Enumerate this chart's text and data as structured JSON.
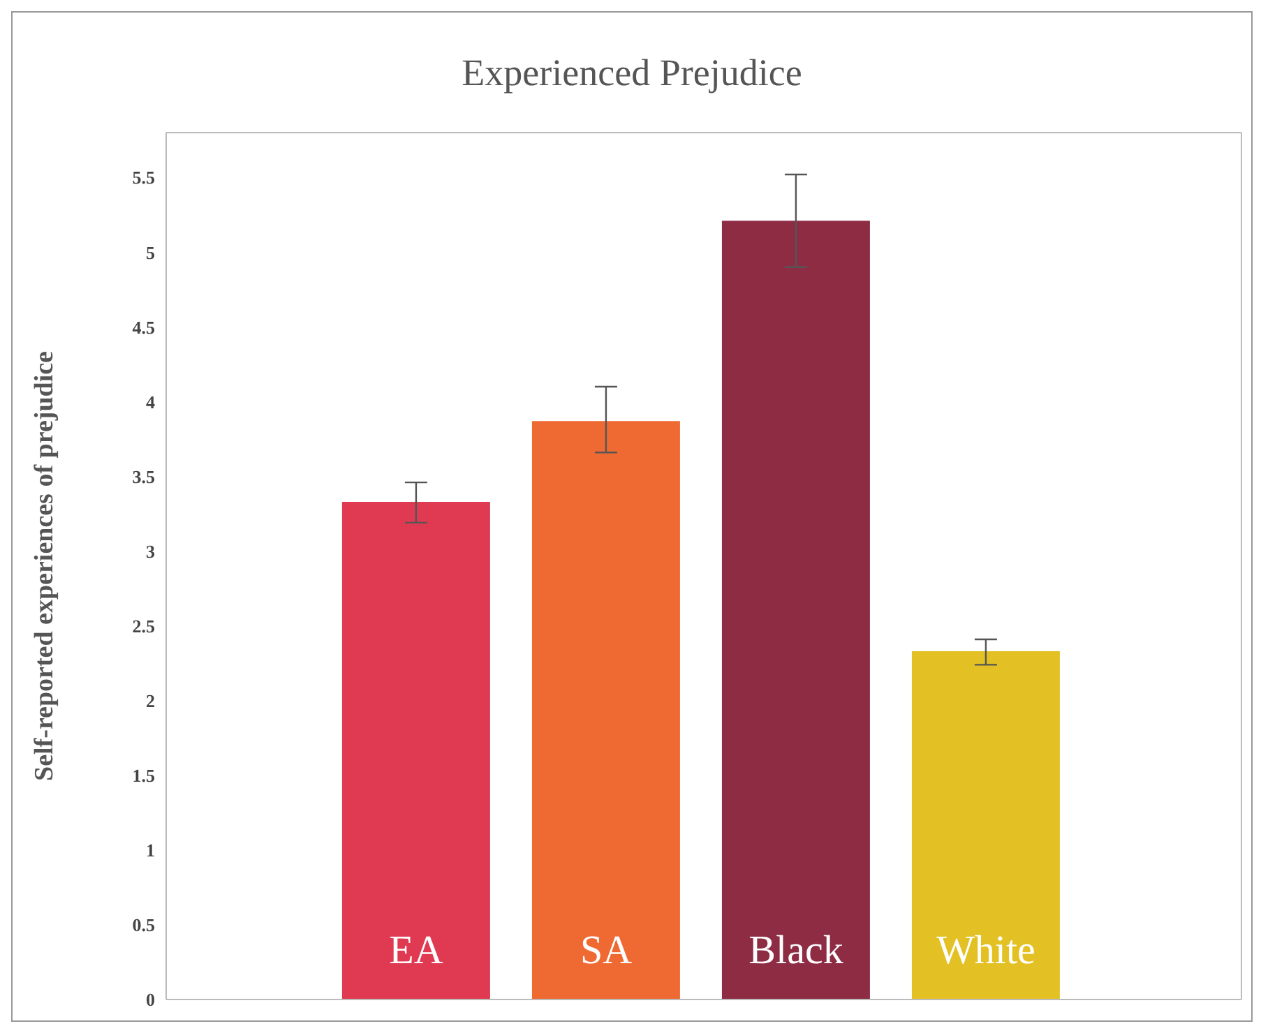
{
  "chart_data": {
    "type": "bar",
    "title": "Experienced Prejudice",
    "ylabel": "Self-reported experiences of prejudice",
    "categories": [
      "EA",
      "SA",
      "Black",
      "White"
    ],
    "values": [
      3.33,
      3.87,
      5.21,
      2.33
    ],
    "colors": [
      "#e03a52",
      "#ef6a32",
      "#8e2c44",
      "#e3c124"
    ],
    "errors": [
      [
        3.19,
        3.46
      ],
      [
        3.66,
        4.1
      ],
      [
        4.9,
        5.52
      ],
      [
        2.24,
        2.41
      ]
    ],
    "ylim": [
      0,
      5.8
    ],
    "yticks": [
      0,
      0.5,
      1,
      1.5,
      2,
      2.5,
      3,
      3.5,
      4,
      4.5,
      5,
      5.5
    ],
    "grid": false
  }
}
